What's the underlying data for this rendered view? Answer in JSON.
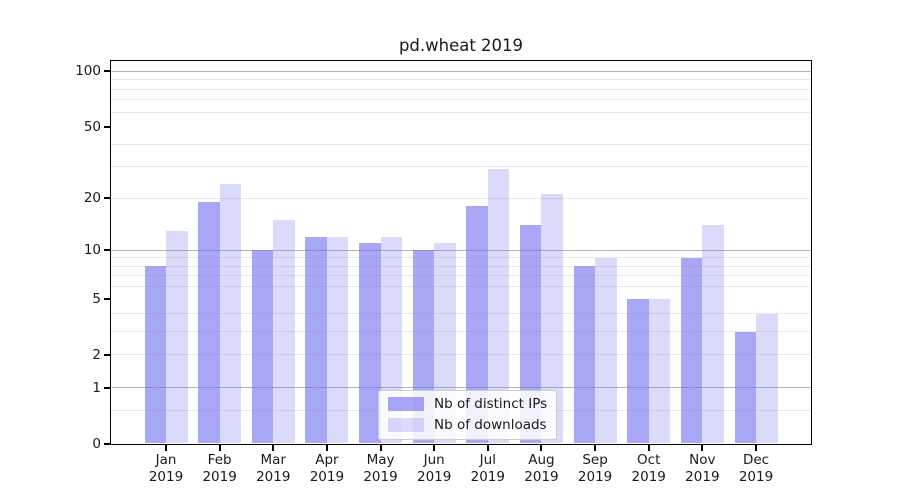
{
  "chart_data": {
    "type": "bar",
    "title": "pd.wheat 2019",
    "xlabel": "",
    "ylabel": "",
    "year": "2019",
    "categories": [
      "Jan",
      "Feb",
      "Mar",
      "Apr",
      "May",
      "Jun",
      "Jul",
      "Aug",
      "Sep",
      "Oct",
      "Nov",
      "Dec"
    ],
    "series": [
      {
        "name": "Nb of distinct IPs",
        "values": [
          8,
          19,
          10,
          12,
          11,
          10,
          18,
          14,
          8,
          5,
          9,
          3
        ],
        "color": "rgba(118,118,240,0.64)"
      },
      {
        "name": "Nb of downloads",
        "values": [
          13,
          24,
          15,
          12,
          12,
          11,
          29,
          21,
          9,
          5,
          14,
          4
        ],
        "color": "rgba(118,118,240,0.27)"
      }
    ],
    "y_axis": {
      "scale": "log1p",
      "ylim": [
        0,
        114.7
      ],
      "ticks": [
        0,
        1,
        2,
        5,
        10,
        20,
        50,
        100
      ],
      "grid_major": [
        1,
        10,
        100
      ],
      "grid_minor": [
        0.5,
        2,
        3,
        4,
        6,
        7,
        8,
        9,
        20,
        30,
        40,
        60,
        70,
        80,
        90
      ]
    },
    "grid": true,
    "legend_position": "lower center",
    "colors": {
      "grid_major": "#b2b2b2",
      "grid_minor": "#e8e8e8",
      "spine": "#000000",
      "text": "#1a1a1a"
    }
  }
}
